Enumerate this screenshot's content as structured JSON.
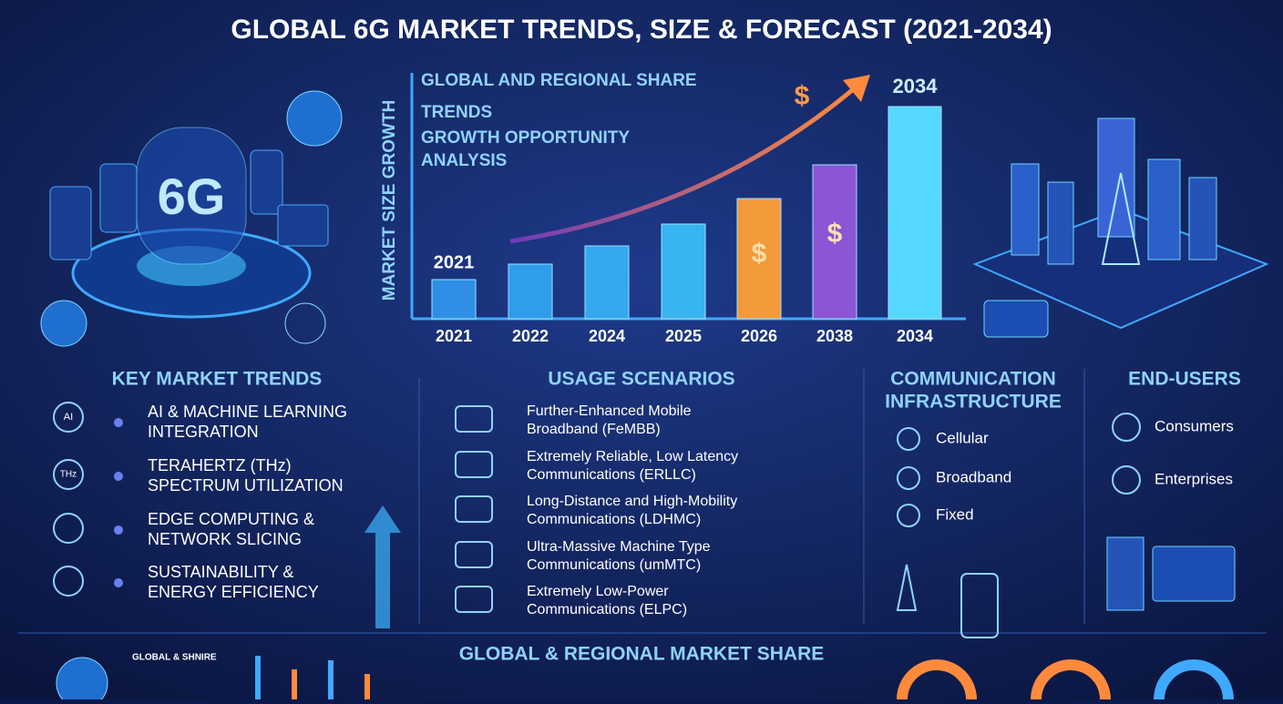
{
  "title": "GLOBAL 6G MARKET TRENDS, SIZE & FORECAST (2021-2034)",
  "hero_label": "6G",
  "chart_data": {
    "type": "bar",
    "y_label": "MARKET SIZE GROWTH",
    "legend_lines": [
      "GLOBAL AND REGIONAL SHARE",
      "TRENDS",
      "GROWTH OPPORTUNITY",
      "ANALYSIS"
    ],
    "annotations": [
      "2021",
      "2034"
    ],
    "currency_mark": "$",
    "categories": [
      "2021",
      "2022",
      "2024",
      "2025",
      "2026",
      "2038",
      "2034"
    ],
    "values": [
      43,
      60,
      80,
      104,
      132,
      169,
      233
    ],
    "colors": [
      "#2f8fe6",
      "#2f9cec",
      "#33a8ee",
      "#38b4f0",
      "#f39a3a",
      "#8b55d6",
      "#55d8ff"
    ],
    "ylim": [
      0,
      270
    ]
  },
  "key_trends": {
    "title": "KEY MARKET TRENDS",
    "icon_labels": [
      "AI",
      "THz"
    ],
    "items": [
      [
        "AI & MACHINE LEARNING",
        "INTEGRATION"
      ],
      [
        "TERAHERTZ (THz)",
        "SPECTRUM UTILIZATION"
      ],
      [
        "EDGE COMPUTING &",
        "NETWORK SLICING"
      ],
      [
        "SUSTAINABILITY &",
        "ENERGY EFFICIENCY"
      ]
    ]
  },
  "usage_scenarios": {
    "title": "USAGE SCENARIOS",
    "items": [
      [
        "Further-Enhanced Mobile",
        "Broadband (FeMBB)"
      ],
      [
        "Extremely Reliable, Low Latency",
        "Communications (ERLLC)"
      ],
      [
        "Long-Distance and High-Mobility",
        "Communications (LDHMC)"
      ],
      [
        "Ultra-Massive Machine Type",
        "Communications (umMTC)"
      ],
      [
        "Extremely Low-Power",
        "Communications (ELPC)"
      ]
    ]
  },
  "infrastructure": {
    "title": [
      "COMMUNICATION",
      "INFRASTRUCTURE"
    ],
    "items": [
      "Cellular",
      "Broadband",
      "Fixed"
    ]
  },
  "end_users": {
    "title": "END-USERS",
    "items": [
      "Consumers",
      "Enterprises"
    ]
  },
  "bottom": {
    "title": "GLOBAL & REGIONAL MARKET SHARE",
    "caption": "GLOBAL & SHNIRE"
  }
}
